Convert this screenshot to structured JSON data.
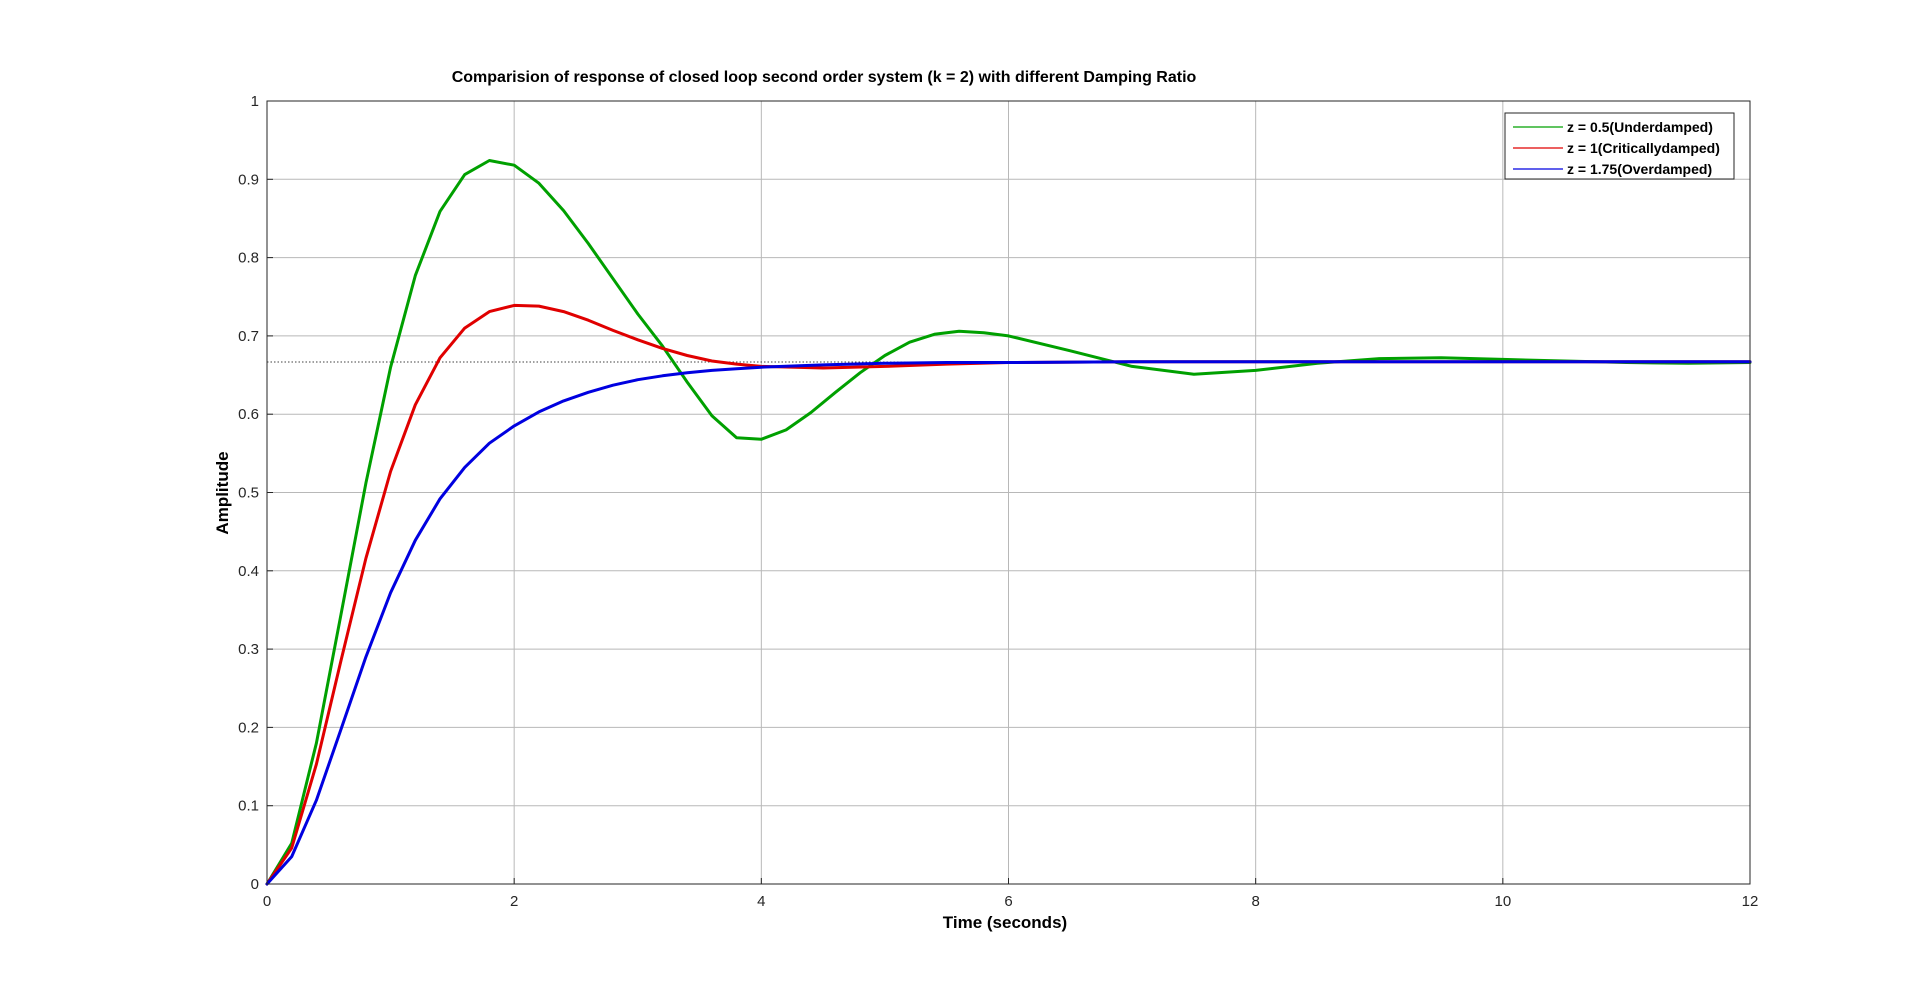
{
  "colors": {
    "underdamped": "#00a000",
    "critically_damped": "#e00000",
    "overdamped": "#0000e0",
    "grid": "#b8b8b8",
    "axis": "#262626",
    "steady_state_line": "#404040"
  },
  "chart_data": {
    "type": "line",
    "title": "Comparision of response of closed loop second order system (k = 2) with different Damping Ratio",
    "xlabel": "Time (seconds)",
    "ylabel": "Amplitude",
    "xlim": [
      0,
      12
    ],
    "ylim": [
      0,
      1
    ],
    "xticks": [
      0,
      2,
      4,
      6,
      8,
      10,
      12
    ],
    "yticks": [
      0,
      0.1,
      0.2,
      0.3,
      0.4,
      0.5,
      0.6,
      0.7,
      0.8,
      0.9,
      1
    ],
    "grid": true,
    "legend_position": "top-right",
    "steady_state": 0.6667,
    "series": [
      {
        "name": "z = 0.5(Underdamped)",
        "color_key": "underdamped",
        "x": [
          0,
          0.2,
          0.4,
          0.6,
          0.8,
          1.0,
          1.2,
          1.4,
          1.6,
          1.8,
          2.0,
          2.2,
          2.4,
          2.6,
          2.8,
          3.0,
          3.2,
          3.4,
          3.6,
          3.8,
          4.0,
          4.2,
          4.4,
          4.6,
          4.8,
          5.0,
          5.2,
          5.4,
          5.6,
          5.8,
          6.0,
          6.5,
          7.0,
          7.5,
          8.0,
          8.5,
          9.0,
          9.5,
          10.0,
          10.5,
          11.0,
          11.5,
          12.0
        ],
        "values": [
          0,
          0.052,
          0.18,
          0.345,
          0.512,
          0.66,
          0.777,
          0.859,
          0.906,
          0.924,
          0.918,
          0.895,
          0.86,
          0.818,
          0.773,
          0.728,
          0.687,
          0.641,
          0.598,
          0.57,
          0.568,
          0.58,
          0.602,
          0.628,
          0.653,
          0.675,
          0.692,
          0.702,
          0.706,
          0.704,
          0.7,
          0.681,
          0.661,
          0.651,
          0.656,
          0.665,
          0.671,
          0.672,
          0.67,
          0.668,
          0.666,
          0.665,
          0.666
        ]
      },
      {
        "name": "z = 1(Criticallydamped)",
        "color_key": "critically_damped",
        "x": [
          0,
          0.2,
          0.4,
          0.6,
          0.8,
          1.0,
          1.2,
          1.4,
          1.6,
          1.8,
          2.0,
          2.2,
          2.4,
          2.6,
          2.8,
          3.0,
          3.2,
          3.4,
          3.6,
          3.8,
          4.0,
          4.5,
          5.0,
          5.5,
          6.0,
          7.0,
          8.0,
          9.0,
          10.0,
          11.0,
          12.0
        ],
        "values": [
          0,
          0.046,
          0.153,
          0.286,
          0.416,
          0.527,
          0.612,
          0.672,
          0.71,
          0.731,
          0.739,
          0.738,
          0.731,
          0.72,
          0.707,
          0.695,
          0.684,
          0.675,
          0.668,
          0.664,
          0.661,
          0.659,
          0.661,
          0.664,
          0.666,
          0.667,
          0.667,
          0.667,
          0.667,
          0.667,
          0.667
        ]
      },
      {
        "name": "z = 1.75(Overdamped)",
        "color_key": "overdamped",
        "x": [
          0,
          0.2,
          0.4,
          0.6,
          0.8,
          1.0,
          1.2,
          1.4,
          1.6,
          1.8,
          2.0,
          2.2,
          2.4,
          2.6,
          2.8,
          3.0,
          3.2,
          3.4,
          3.6,
          3.8,
          4.0,
          4.5,
          5.0,
          5.5,
          6.0,
          7.0,
          8.0,
          9.0,
          10.0,
          11.0,
          12.0
        ],
        "values": [
          0,
          0.035,
          0.107,
          0.198,
          0.29,
          0.372,
          0.439,
          0.492,
          0.532,
          0.563,
          0.585,
          0.603,
          0.617,
          0.628,
          0.637,
          0.644,
          0.649,
          0.653,
          0.656,
          0.658,
          0.66,
          0.663,
          0.665,
          0.666,
          0.666,
          0.667,
          0.667,
          0.667,
          0.667,
          0.667,
          0.667
        ]
      }
    ]
  }
}
